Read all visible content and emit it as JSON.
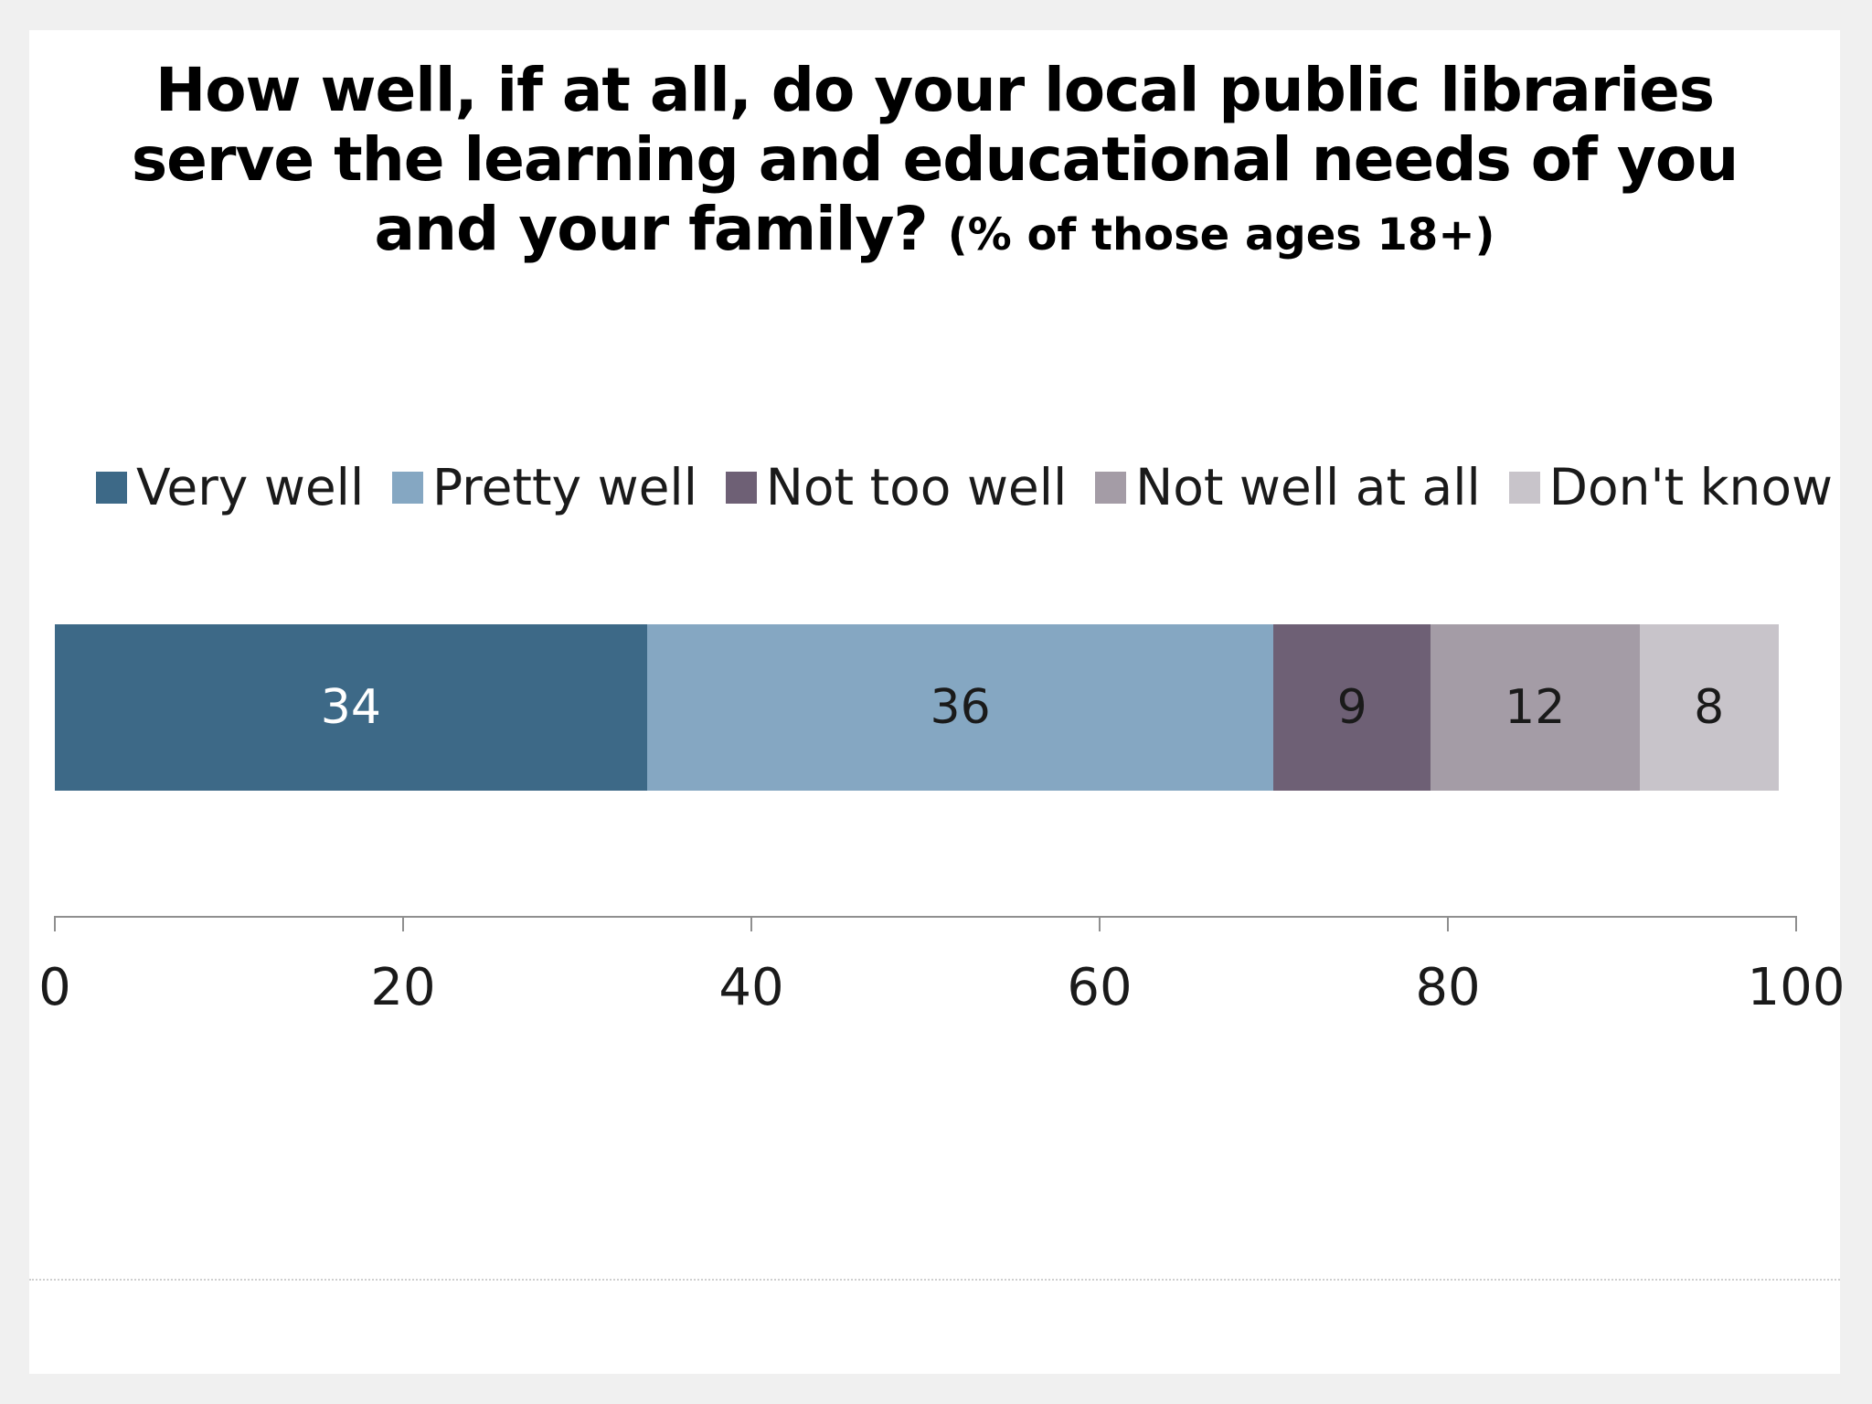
{
  "page": {
    "background_color": "#f0f0f0",
    "card_color": "#ffffff"
  },
  "chart_data": {
    "type": "bar",
    "variant": "horizontal-stacked",
    "title": "How well, if at all, do your local public libraries serve the learning and educational needs of you and your family?",
    "title_lines": [
      "How well, if at all, do your local public libraries",
      "serve the learning and educational needs of you",
      "and your family?"
    ],
    "title_suffix": "(% of those ages 18+)",
    "categories": [
      "Very well",
      "Pretty well",
      "Not too well",
      "Not well at all",
      "Don't know"
    ],
    "series": [
      {
        "name": "Very well",
        "value": 34,
        "color": "#3d6987",
        "label_color": "#ffffff"
      },
      {
        "name": "Pretty well",
        "value": 36,
        "color": "#85a7c2",
        "label_color": "#1a1a1a"
      },
      {
        "name": "Not too well",
        "value": 9,
        "color": "#6e6075",
        "label_color": "#1a1a1a"
      },
      {
        "name": "Not well at all",
        "value": 12,
        "color": "#a49ca6",
        "label_color": "#1a1a1a"
      },
      {
        "name": "Don't know",
        "value": 8,
        "color": "#c8c4ca",
        "label_color": "#1a1a1a"
      }
    ],
    "xlabel": "",
    "ylabel": "",
    "xlim": [
      0,
      100
    ],
    "x_ticks": [
      0,
      20,
      40,
      60,
      80,
      100
    ],
    "legend_position": "top",
    "grid": false,
    "axis_color": "#8f8f8f",
    "text_color": "#1a1a1a"
  }
}
